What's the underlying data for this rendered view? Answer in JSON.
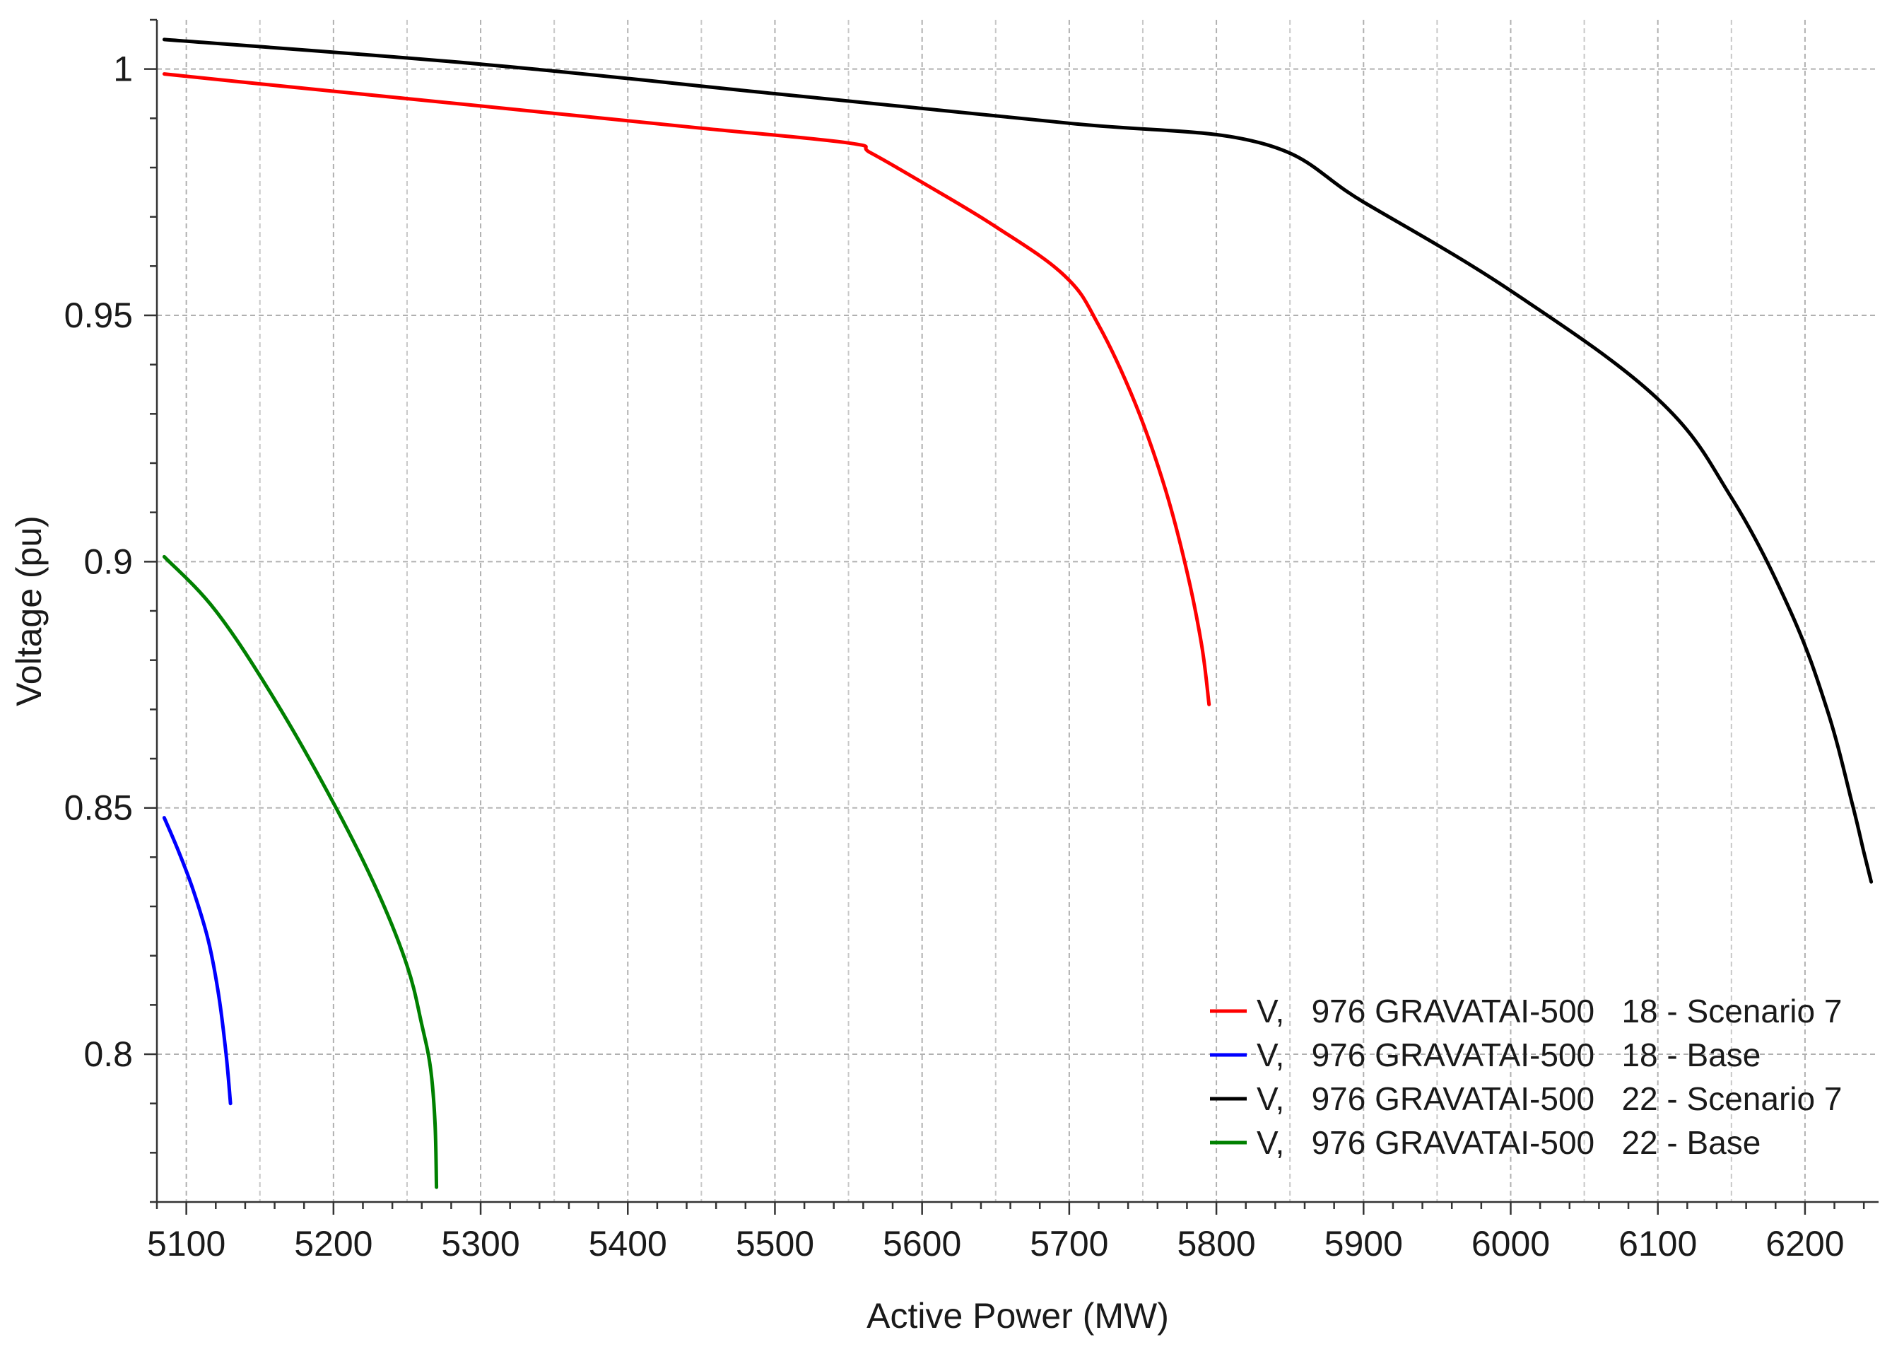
{
  "chart_data": {
    "type": "line",
    "title": "",
    "xlabel": "Active Power (MW)",
    "ylabel": "Voltage (pu)",
    "xlim": [
      5080,
      6250
    ],
    "ylim": [
      0.77,
      1.01
    ],
    "x_ticks": [
      "5100",
      "5200",
      "5300",
      "5400",
      "5500",
      "5600",
      "5700",
      "5800",
      "5900",
      "6000",
      "6100",
      "6200"
    ],
    "y_ticks": [
      "0.8",
      "0.85",
      "0.9",
      "0.95",
      "1"
    ],
    "grid": true,
    "legend_position": "bottom-right",
    "series": [
      {
        "name": "V,   976 GRAVATAI-500   18 - Scenario 7",
        "color": "#ff0000",
        "x": [
          5085,
          5150,
          5250,
          5350,
          5450,
          5550,
          5565,
          5600,
          5650,
          5697,
          5720,
          5745,
          5765,
          5780,
          5790,
          5795
        ],
        "y": [
          0.999,
          0.997,
          0.994,
          0.991,
          0.988,
          0.985,
          0.983,
          0.977,
          0.968,
          0.958,
          0.948,
          0.932,
          0.915,
          0.898,
          0.883,
          0.871
        ]
      },
      {
        "name": "V,   976 GRAVATAI-500   18 - Base",
        "color": "#0000ff",
        "x": [
          5085,
          5095,
          5105,
          5115,
          5122,
          5127,
          5130
        ],
        "y": [
          0.848,
          0.841,
          0.833,
          0.823,
          0.812,
          0.8,
          0.79
        ]
      },
      {
        "name": "V,   976 GRAVATAI-500   22 - Scenario 7",
        "color": "#000000",
        "x": [
          5085,
          5300,
          5500,
          5700,
          5830,
          5900,
          6000,
          6100,
          6150,
          6190,
          6215,
          6232,
          6240,
          6245
        ],
        "y": [
          1.006,
          1.001,
          0.995,
          0.989,
          0.985,
          0.973,
          0.955,
          0.933,
          0.913,
          0.89,
          0.87,
          0.851,
          0.841,
          0.835
        ]
      },
      {
        "name": "V,   976 GRAVATAI-500   22 - Base",
        "color": "#008000",
        "x": [
          5085,
          5120,
          5160,
          5200,
          5230,
          5250,
          5260,
          5266,
          5269,
          5270
        ],
        "y": [
          0.901,
          0.89,
          0.872,
          0.851,
          0.833,
          0.818,
          0.806,
          0.797,
          0.786,
          0.773
        ]
      }
    ]
  }
}
